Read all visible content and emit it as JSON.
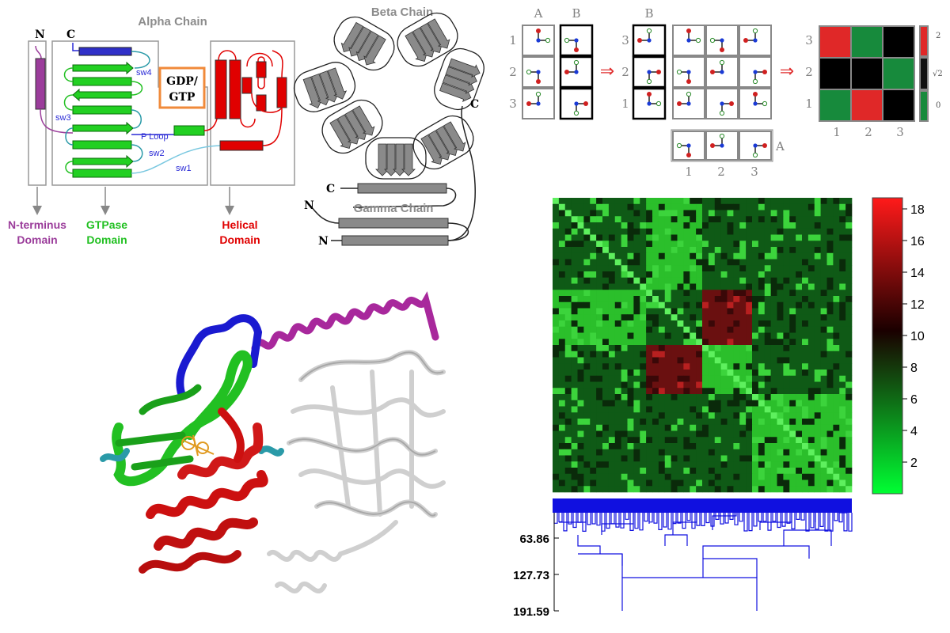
{
  "alpha_chain": {
    "title": "Alpha Chain",
    "n_label": "N",
    "c_label": "C",
    "nucleotide": [
      "GDP/",
      "GTP"
    ],
    "switches": [
      "sw4",
      "sw3",
      "P Loop",
      "sw2",
      "sw1"
    ],
    "domains": [
      {
        "line1": "N-terminus",
        "line2": "Domain",
        "color": "#9b3d9b"
      },
      {
        "line1": "GTPase",
        "line2": "Domain",
        "color": "#22c022"
      },
      {
        "line1": "Helical",
        "line2": "Domain",
        "color": "#e00000"
      }
    ]
  },
  "beta_gamma": {
    "beta_title": "Beta Chain",
    "gamma_title": "Gamma Chain",
    "labels": [
      "C",
      "C",
      "N",
      "N"
    ]
  },
  "mapping": {
    "matrix_a_header": "A",
    "matrix_b_header": "B",
    "row_labels": [
      "1",
      "2",
      "3"
    ],
    "b_row_labels": [
      "3",
      "2",
      "1"
    ],
    "col_labels": [
      "1",
      "2",
      "3"
    ],
    "a_label": "A",
    "arrow": "⇒",
    "result_rows": [
      "3",
      "2",
      "1"
    ],
    "result_cols": [
      "1",
      "2",
      "3"
    ],
    "result_colors": [
      [
        "#e02828",
        "#178a3c",
        "#000000"
      ],
      [
        "#000000",
        "#000000",
        "#178a3c"
      ],
      [
        "#178a3c",
        "#e02828",
        "#000000"
      ]
    ],
    "mini_scale": [
      "2",
      "√2",
      "0"
    ]
  },
  "heatmap": {
    "colorbar_ticks": [
      "18",
      "16",
      "14",
      "12",
      "10",
      "8",
      "6",
      "4",
      "2"
    ],
    "colorbar_colors": [
      "#ff1a1a",
      "#1a0000",
      "#00ff33"
    ]
  },
  "dendrogram": {
    "tick_labels": [
      "63.86",
      "127.73",
      "191.59"
    ],
    "color": "#1010e0"
  },
  "structure_colors": {
    "n_terminus": "#9b3d9b",
    "switches": "#1a1ad0",
    "gtpase": "#22c022",
    "helical": "#cc1010",
    "loops": "#2a9aa8",
    "beta_gamma": "#c8c8c8",
    "ligand": "#e09a20"
  }
}
